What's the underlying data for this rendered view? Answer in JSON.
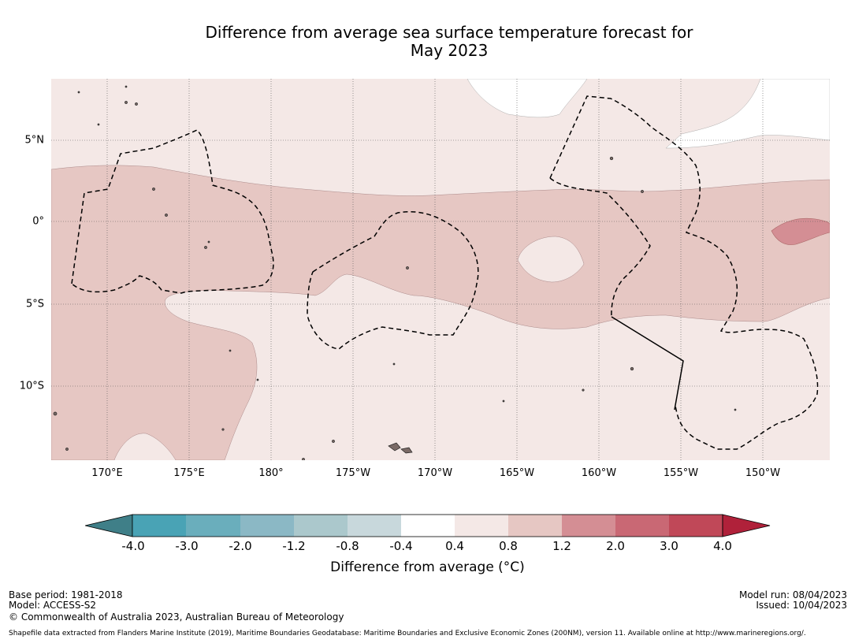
{
  "title": {
    "line1": "Difference from average sea surface temperature forecast for",
    "line2": "May 2023"
  },
  "map": {
    "lon_labels": [
      "170°E",
      "175°E",
      "180°",
      "175°W",
      "170°W",
      "165°W",
      "160°W",
      "155°W",
      "150°W"
    ],
    "lat_labels": [
      "5°N",
      "0°",
      "5°S",
      "10°S"
    ],
    "colors": {
      "background": "#f4e8e6",
      "band_0_8_1_2": "#e6c7c3",
      "band_1_2_2_0": "#d48e94",
      "zero_band": "#ffffff",
      "eez_boundary": "#000000"
    }
  },
  "colorbar": {
    "ticks": [
      "-4.0",
      "-3.0",
      "-2.0",
      "-1.2",
      "-0.8",
      "-0.4",
      "0.4",
      "0.8",
      "1.2",
      "2.0",
      "3.0",
      "4.0"
    ],
    "colors": [
      "#3f7f88",
      "#49a3b5",
      "#6aaebc",
      "#8bb8c5",
      "#abc8cc",
      "#c8d8dc",
      "#ffffff",
      "#f4e8e6",
      "#e6c7c3",
      "#d48e94",
      "#c96874",
      "#c04858",
      "#b0213a"
    ],
    "label": "Difference from average (°C)"
  },
  "meta": {
    "base_period": "Base period: 1981-2018",
    "model": "Model: ACCESS-S2",
    "copyright": "© Commonwealth of Australia 2023, Australian Bureau of Meteorology",
    "model_run": "Model run: 08/04/2023",
    "issued": "Issued: 10/04/2023",
    "shapefile": "Shapefile data extracted from Flanders Marine Institute (2019), Maritime Boundaries Geodatabase: Maritime Boundaries and Exclusive Economic Zones (200NM), version 11. Available online at http://www.marineregions.org/."
  }
}
